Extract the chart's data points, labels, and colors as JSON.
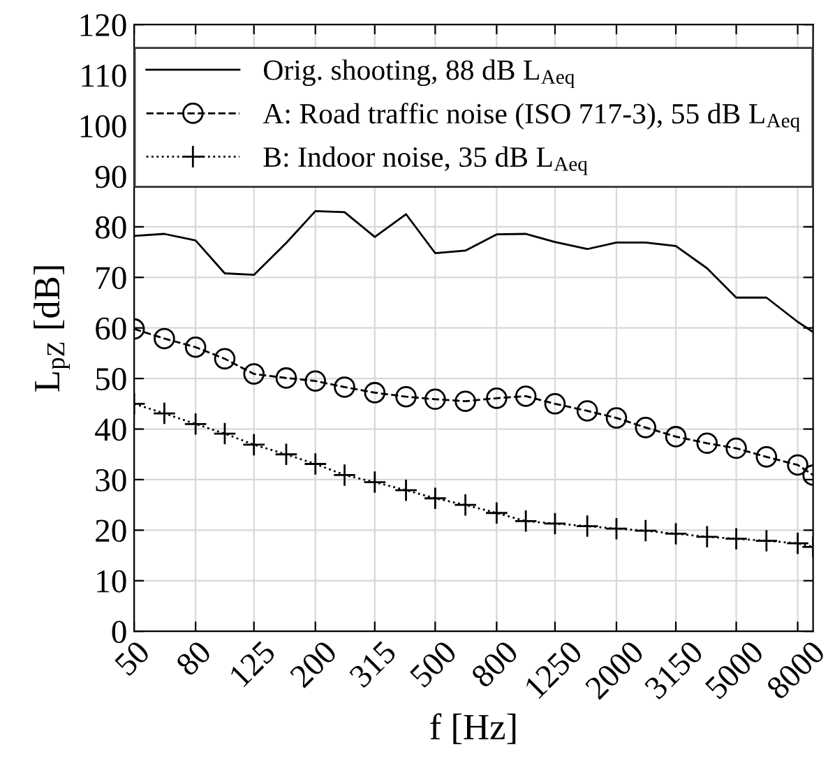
{
  "chart_data": {
    "type": "line",
    "xlabel": "f [Hz]",
    "ylabel": "L$_{pZ}$ [dB]",
    "log": "x",
    "grid": true,
    "legend": "top",
    "x": [
      50,
      63,
      80,
      100,
      125,
      160,
      200,
      250,
      315,
      400,
      500,
      630,
      800,
      1000,
      1250,
      1600,
      2000,
      2500,
      3150,
      4000,
      5000,
      6300,
      8000,
      9000
    ],
    "xlim": [
      50,
      9000
    ],
    "xticks": [
      50,
      80,
      125,
      200,
      315,
      500,
      800,
      1250,
      2000,
      3150,
      5000,
      8000
    ],
    "ylim": [
      0,
      120
    ],
    "yticks": [
      0,
      10,
      20,
      30,
      40,
      50,
      60,
      70,
      80,
      90,
      100,
      110,
      120
    ],
    "series": [
      {
        "name": "Orig. shooting, 88 dB L$_{Aeq}$",
        "color": "#000000",
        "marker": "none",
        "line_style": "solid",
        "values": [
          78.2,
          78.6,
          77.3,
          70.8,
          70.5,
          76.8,
          83.1,
          82.9,
          78.0,
          82.5,
          74.8,
          75.3,
          78.5,
          78.6,
          77.0,
          75.6,
          76.9,
          76.9,
          76.2,
          71.8,
          66.0,
          66.0,
          61.2,
          59.2
        ]
      },
      {
        "name": "A: Road traffic noise (ISO 717-3), 55 dB L$_{Aeq}$",
        "color": "#000000",
        "marker": "circle",
        "line_style": "dashed",
        "values": [
          59.8,
          57.9,
          56.2,
          53.9,
          50.9,
          50.1,
          49.5,
          48.3,
          47.2,
          46.4,
          45.9,
          45.5,
          46.1,
          46.5,
          45.0,
          43.6,
          42.2,
          40.3,
          38.5,
          37.2,
          36.2,
          34.5,
          32.9,
          30.9
        ]
      },
      {
        "name": "B: Indoor noise, 35 dB L$_{Aeq}$",
        "color": "#000000",
        "marker": "cross",
        "line_style": "dotted",
        "values": [
          45.0,
          43.1,
          41.0,
          39.1,
          36.9,
          35.0,
          33.1,
          30.9,
          29.5,
          27.9,
          26.3,
          25.0,
          23.4,
          21.8,
          21.3,
          20.8,
          20.3,
          19.9,
          19.3,
          18.7,
          18.3,
          17.9,
          17.4,
          16.7
        ]
      }
    ]
  }
}
